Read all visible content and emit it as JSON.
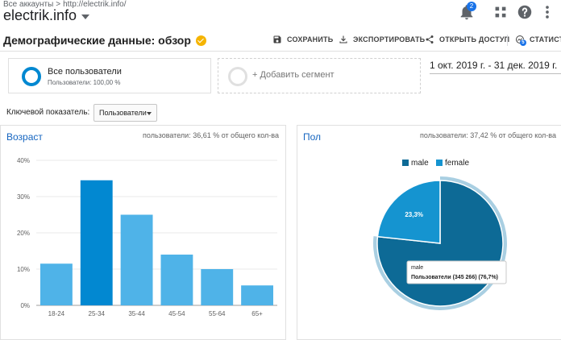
{
  "header": {
    "breadcrumb": [
      "Все аккаунты",
      "http://electrik.info/"
    ],
    "breadcrumb_sep": ">",
    "property_name": "electrik.info",
    "notification_count": "2",
    "icons": [
      "bell-icon",
      "apps-grid-icon",
      "help-icon",
      "more-vert-icon"
    ]
  },
  "toolbar": {
    "title": "Демографические данные: обзор",
    "save_label": "СОХРАНИТЬ",
    "export_label": "ЭКСПОРТИРОВАТЬ",
    "share_label": "ОТКРЫТЬ ДОСТУП",
    "insights_label": "СТАТИСТИКА",
    "insights_badge": "5"
  },
  "segments": {
    "active_name": "Все пользователи",
    "active_sub": "Пользователи: 100,00 %",
    "add_label": "+ Добавить сегмент"
  },
  "date_range": "1 окт. 2019 г. - 31 дек. 2019 г.",
  "metric": {
    "label": "Ключевой показатель:",
    "selected": "Пользователи"
  },
  "colors": {
    "accent": "#0288d1",
    "bar_highlight": "#0288d1",
    "bar_light": "#4fb3e8",
    "pie_male": "#0d6a96",
    "pie_female": "#1594d0"
  },
  "age_card": {
    "title": "Возраст",
    "note": "пользователи: 36,61 % от общего кол-ва"
  },
  "gender_card": {
    "title": "Пол",
    "note": "пользователи: 37,42 % от общего кол-ва"
  },
  "chart_data": [
    {
      "type": "bar",
      "categories": [
        "18-24",
        "25-34",
        "35-44",
        "45-54",
        "55-64",
        "65+"
      ],
      "values": [
        11.5,
        34.5,
        25,
        14,
        10,
        5.5
      ],
      "highlight_index": 1,
      "yticks": [
        "0%",
        "10%",
        "20%",
        "30%",
        "40%"
      ],
      "ylim": [
        0,
        40
      ],
      "grid": true
    },
    {
      "type": "pie",
      "legend": [
        "male",
        "female"
      ],
      "legend_position": "top",
      "values": [
        76.7,
        23.3
      ],
      "slice_labels": [
        "",
        "23,3%"
      ],
      "tooltip": {
        "title": "male",
        "value": "Пользователи (345 266) (76,7%)"
      }
    }
  ]
}
